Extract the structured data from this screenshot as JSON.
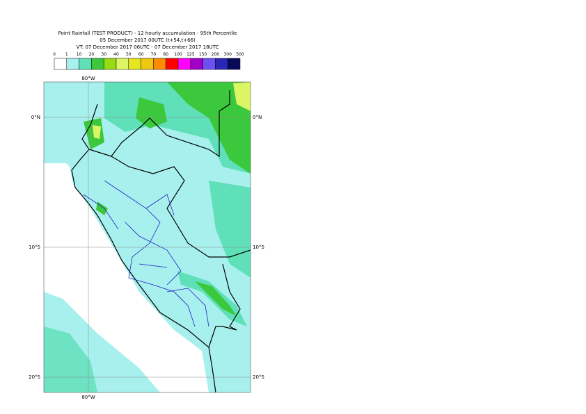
{
  "header": {
    "title": "Point Rainfall (TEST PRODUCT) - 12 hourly accumulation - 95th Percentile",
    "base_time": "05 December 2017 00UTC (t+54,t+66)",
    "valid_time": "VT: 07 December 2017 06UTC - 07 December 2017 18UTC"
  },
  "legend": {
    "thresholds": [
      0,
      1,
      10,
      20,
      30,
      40,
      50,
      60,
      70,
      80,
      100,
      125,
      150,
      200,
      300,
      500
    ],
    "colors": [
      "#ffffff",
      "#a8f0ee",
      "#5fe0b8",
      "#3cc83c",
      "#96dc14",
      "#dcf564",
      "#e6e61e",
      "#f0c814",
      "#ff8c00",
      "#ff0000",
      "#ff00ff",
      "#a000c8",
      "#6e50f0",
      "#2828b4",
      "#0a0a5a"
    ]
  },
  "map": {
    "lat_labels": [
      "0°N",
      "10°S",
      "20°S"
    ],
    "lon_labels": [
      "80°W"
    ]
  }
}
